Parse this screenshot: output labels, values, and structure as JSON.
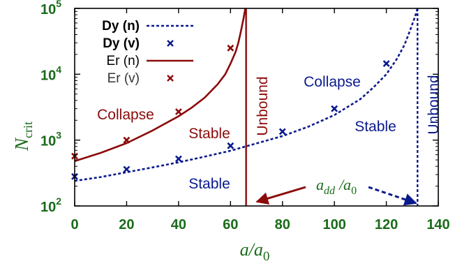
{
  "chart_data": {
    "type": "line",
    "xlabel": "a/a0",
    "ylabel": "Ncrit",
    "xlim": [
      0,
      140
    ],
    "ylim": [
      100,
      100000
    ],
    "y_scale": "log",
    "x_ticks": [
      "0",
      "20",
      "40",
      "60",
      "80",
      "100",
      "120",
      "140"
    ],
    "y_ticks": [
      {
        "base": "10",
        "exp": "2"
      },
      {
        "base": "10",
        "exp": "3"
      },
      {
        "base": "10",
        "exp": "4"
      },
      {
        "base": "10",
        "exp": "5"
      }
    ],
    "legend": {
      "position": "top-left",
      "entries": [
        {
          "label": "Dy (n)",
          "color": "#0a1a8c",
          "style": "dashed-line"
        },
        {
          "label": "Dy (v)",
          "color": "#0a1a8c",
          "style": "cross"
        },
        {
          "label": "Er (n)",
          "color": "#8b0a0a",
          "style": "solid-line"
        },
        {
          "label": "Er (v)",
          "color": "#8b0a0a",
          "style": "cross"
        }
      ]
    },
    "series": [
      {
        "name": "Dy (n)",
        "color": "#0a1a8c",
        "style": "dashed",
        "x": [
          0,
          10,
          20,
          30,
          40,
          50,
          60,
          70,
          80,
          90,
          100,
          110,
          115,
          120,
          124,
          127,
          129,
          130.5,
          131.5,
          132
        ],
        "y": [
          240,
          275,
          325,
          385,
          460,
          560,
          690,
          890,
          1150,
          1600,
          2400,
          4200,
          6300,
          10000,
          17000,
          28000,
          45000,
          65000,
          85000,
          100000
        ]
      },
      {
        "name": "Dy (v)",
        "color": "#0a1a8c",
        "style": "markers",
        "x": [
          0,
          20,
          40,
          60,
          80,
          100,
          120
        ],
        "y": [
          280,
          360,
          520,
          820,
          1350,
          3000,
          14500
        ]
      },
      {
        "name": "Er (n)",
        "color": "#8b0a0a",
        "style": "solid",
        "x": [
          0,
          10,
          20,
          30,
          40,
          45,
          50,
          55,
          58,
          60,
          62,
          63,
          64,
          65,
          65.7
        ],
        "y": [
          480,
          640,
          900,
          1400,
          2300,
          3100,
          4400,
          7000,
          10000,
          14500,
          22000,
          30000,
          45000,
          70000,
          100000
        ]
      },
      {
        "name": "Er (v)",
        "color": "#8b0a0a",
        "style": "markers",
        "x": [
          0,
          20,
          40,
          60
        ],
        "y": [
          570,
          1000,
          2700,
          25000
        ]
      }
    ],
    "vlines": [
      {
        "x": 66,
        "color": "#8b0a0a",
        "style": "solid"
      },
      {
        "x": 132,
        "color": "#0a1a8c",
        "style": "dashed"
      }
    ],
    "annotations": {
      "er_collapse": {
        "text": "Collapse",
        "color": "#8b0a0a"
      },
      "er_stable": {
        "text": "Stable",
        "color": "#8b0a0a"
      },
      "er_unbound": {
        "text": "Unbound",
        "color": "#8b0a0a"
      },
      "dy_collapse": {
        "text": "Collapse",
        "color": "#0a1a8c"
      },
      "dy_stable_upper": {
        "text": "Stable",
        "color": "#0a1a8c"
      },
      "dy_stable_lower": {
        "text": "Stable",
        "color": "#0a1a8c"
      },
      "dy_unbound": {
        "text": "Unbound",
        "color": "#0a1a8c"
      },
      "add_label": {
        "text": "add /a0",
        "color": "#1a6b1a"
      }
    },
    "grid": false
  }
}
